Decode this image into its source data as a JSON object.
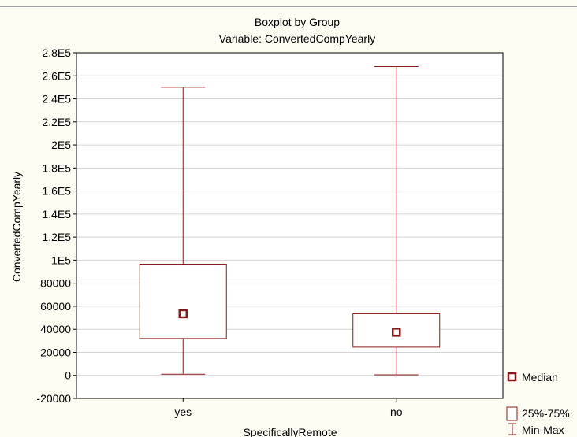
{
  "chart_data": {
    "type": "boxplot",
    "title": "Boxplot by Group",
    "subtitle": "Variable: ConvertedCompYearly",
    "xlabel": "SpecificallyRemote",
    "ylabel": "ConvertedCompYearly",
    "ylim": [
      -20000,
      280000
    ],
    "yticks": [
      {
        "value": -20000,
        "label": "-20000"
      },
      {
        "value": 0,
        "label": "0"
      },
      {
        "value": 20000,
        "label": "20000"
      },
      {
        "value": 40000,
        "label": "40000"
      },
      {
        "value": 60000,
        "label": "60000"
      },
      {
        "value": 80000,
        "label": "80000"
      },
      {
        "value": 100000,
        "label": "1E5"
      },
      {
        "value": 120000,
        "label": "1.2E5"
      },
      {
        "value": 140000,
        "label": "1.4E5"
      },
      {
        "value": 160000,
        "label": "1.6E5"
      },
      {
        "value": 180000,
        "label": "1.8E5"
      },
      {
        "value": 200000,
        "label": "2E5"
      },
      {
        "value": 220000,
        "label": "2.2E5"
      },
      {
        "value": 240000,
        "label": "2.4E5"
      },
      {
        "value": 260000,
        "label": "2.6E5"
      },
      {
        "value": 280000,
        "label": "2.8E5"
      }
    ],
    "grid": true,
    "categories": [
      "yes",
      "no"
    ],
    "groups": [
      {
        "category": "yes",
        "min": 1000,
        "q1": 32000,
        "median": 53500,
        "q3": 96500,
        "max": 250000
      },
      {
        "category": "no",
        "min": 500,
        "q1": 24500,
        "median": 37500,
        "q3": 53500,
        "max": 268000
      }
    ],
    "legend": {
      "placement": "bottom-right-outside",
      "items": [
        {
          "label": "Median",
          "symbol": "square-marker"
        },
        {
          "label": "25%-75%",
          "symbol": "box"
        },
        {
          "label": "Min-Max",
          "symbol": "whisker"
        }
      ]
    },
    "colors": {
      "box": "#8b1a1a",
      "marker": "#8b1a1a",
      "grid": "#d3d3d3",
      "background": "#fdfdf3",
      "plot_background": "#ffffff"
    }
  }
}
